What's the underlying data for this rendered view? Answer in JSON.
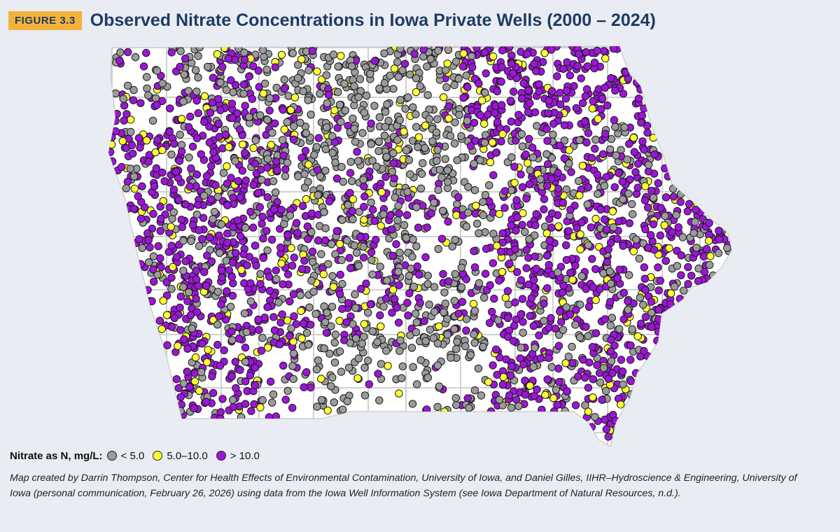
{
  "header": {
    "figure_label": "FIGURE 3.3",
    "title": "Observed Nitrate Concentrations in Iowa Private Wells (2000 – 2024)"
  },
  "map": {
    "region": "Iowa",
    "layers": [
      "county boundaries",
      "private well nitrate observations"
    ],
    "background_color": "#ffffff",
    "county_line_color": "#d0d0d0"
  },
  "legend": {
    "title": "Nitrate as N, mg/L:",
    "items": [
      {
        "label": "< 5.0",
        "color": "#9b9b9b"
      },
      {
        "label": "5.0–10.0",
        "color": "#ffff33"
      },
      {
        "label": "> 10.0",
        "color": "#9b16d6"
      }
    ]
  },
  "caption": "Map created by Darrin Thompson, Center for Health Effects of Environmental Contamination, University of Iowa, and Daniel Gilles, IIHR–Hydroscience & Engineering, University of Iowa (personal communication, February 26, 2026) using data from the Iowa Well Information System (see Iowa Department of Natural Resources, n.d.)."
}
